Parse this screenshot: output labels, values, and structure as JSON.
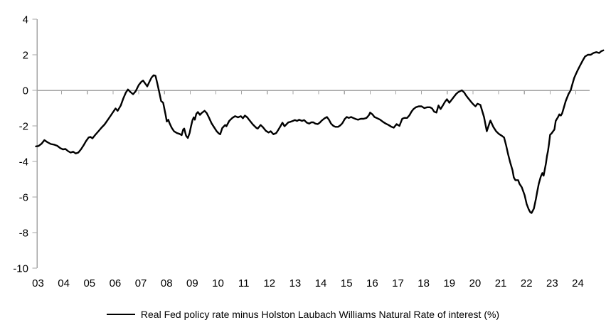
{
  "colors": {
    "series_line": "#000000",
    "axis": "#a6a6a6",
    "text": "#000000",
    "background": "#ffffff"
  },
  "legend": {
    "label": "Real Fed policy rate minus Holston Laubach Williams Natural Rate of interest (%)"
  },
  "chart_data": {
    "type": "line",
    "title": "",
    "xlabel": "",
    "ylabel": "",
    "legend_position": "bottom",
    "grid": "zero-line-only",
    "x_axis": {
      "tick_labels": [
        "03",
        "04",
        "05",
        "06",
        "07",
        "08",
        "09",
        "10",
        "11",
        "12",
        "13",
        "14",
        "15",
        "16",
        "17",
        "18",
        "19",
        "20",
        "21",
        "22",
        "23",
        "24"
      ],
      "tick_years": [
        2003,
        2004,
        2005,
        2006,
        2007,
        2008,
        2009,
        2010,
        2011,
        2012,
        2013,
        2014,
        2015,
        2016,
        2017,
        2018,
        2019,
        2020,
        2021,
        2022,
        2023,
        2024
      ],
      "range": [
        2003.0,
        2025.2
      ]
    },
    "y_axis": {
      "tick_values": [
        4,
        2,
        0,
        -2,
        -4,
        -6,
        -8,
        -10
      ],
      "range": [
        -10,
        4
      ],
      "zero_gridline": true
    },
    "series": [
      {
        "name": "Real Fed policy rate minus Holston Laubach Williams Natural Rate of interest (%)",
        "color": "#000000",
        "x": [
          2003.0,
          2003.1,
          2003.22,
          2003.33,
          2003.45,
          2003.58,
          2003.7,
          2003.83,
          2003.95,
          2004.05,
          2004.15,
          2004.25,
          2004.35,
          2004.45,
          2004.55,
          2004.65,
          2004.75,
          2004.85,
          2004.95,
          2005.05,
          2005.12,
          2005.2,
          2005.3,
          2005.42,
          2005.55,
          2005.67,
          2005.8,
          2005.92,
          2006.02,
          2006.1,
          2006.18,
          2006.3,
          2006.4,
          2006.5,
          2006.58,
          2006.68,
          2006.78,
          2006.88,
          2007.0,
          2007.1,
          2007.17,
          2007.27,
          2007.33,
          2007.42,
          2007.5,
          2007.58,
          2007.65,
          2007.72,
          2007.79,
          2007.87,
          2007.95,
          2008.04,
          2008.09,
          2008.15,
          2008.2,
          2008.28,
          2008.37,
          2008.48,
          2008.59,
          2008.67,
          2008.73,
          2008.77,
          2008.84,
          2008.91,
          2008.98,
          2009.03,
          2009.09,
          2009.14,
          2009.18,
          2009.24,
          2009.3,
          2009.38,
          2009.45,
          2009.56,
          2009.64,
          2009.72,
          2009.83,
          2009.92,
          2010.03,
          2010.11,
          2010.17,
          2010.25,
          2010.36,
          2010.41,
          2010.52,
          2010.64,
          2010.75,
          2010.86,
          2010.97,
          2011.05,
          2011.13,
          2011.22,
          2011.3,
          2011.44,
          2011.58,
          2011.63,
          2011.74,
          2011.83,
          2011.94,
          2012.05,
          2012.13,
          2012.24,
          2012.35,
          2012.43,
          2012.52,
          2012.59,
          2012.67,
          2012.74,
          2012.82,
          2012.9,
          2013.0,
          2013.07,
          2013.16,
          2013.24,
          2013.35,
          2013.43,
          2013.54,
          2013.63,
          2013.71,
          2013.79,
          2013.87,
          2013.96,
          2014.04,
          2014.12,
          2014.23,
          2014.32,
          2014.4,
          2014.48,
          2014.57,
          2014.65,
          2014.76,
          2014.84,
          2014.92,
          2015.01,
          2015.09,
          2015.17,
          2015.26,
          2015.34,
          2015.45,
          2015.53,
          2015.64,
          2015.75,
          2015.86,
          2015.95,
          2016.0,
          2016.09,
          2016.17,
          2016.28,
          2016.39,
          2016.5,
          2016.61,
          2016.72,
          2016.83,
          2016.92,
          2017.03,
          2017.14,
          2017.25,
          2017.33,
          2017.44,
          2017.53,
          2017.61,
          2017.69,
          2017.78,
          2017.89,
          2018.0,
          2018.11,
          2018.22,
          2018.33,
          2018.41,
          2018.49,
          2018.58,
          2018.66,
          2018.74,
          2018.83,
          2018.91,
          2018.99,
          2019.08,
          2019.16,
          2019.24,
          2019.35,
          2019.43,
          2019.52,
          2019.57,
          2019.66,
          2019.74,
          2019.82,
          2019.93,
          2020.02,
          2020.1,
          2020.18,
          2020.29,
          2020.43,
          2020.54,
          2020.63,
          2020.68,
          2020.79,
          2020.9,
          2021.01,
          2021.12,
          2021.21,
          2021.29,
          2021.37,
          2021.45,
          2021.54,
          2021.59,
          2021.65,
          2021.76,
          2021.81,
          2021.9,
          2022.01,
          2022.09,
          2022.17,
          2022.23,
          2022.28,
          2022.37,
          2022.45,
          2022.5,
          2022.56,
          2022.64,
          2022.7,
          2022.75,
          2022.84,
          2022.88,
          2022.92,
          2022.96,
          2023.0,
          2023.06,
          2023.11,
          2023.17,
          2023.22,
          2023.31,
          2023.36,
          2023.42,
          2023.47,
          2023.53,
          2023.61,
          2023.72,
          2023.8,
          2023.86,
          2023.94,
          2024.0,
          2024.08,
          2024.17,
          2024.28,
          2024.36,
          2024.47,
          2024.58,
          2024.69,
          2024.8,
          2024.91,
          2024.99,
          2025.07
        ],
        "y": [
          -3.15,
          -3.13,
          -3.0,
          -2.8,
          -2.92,
          -3.02,
          -3.05,
          -3.12,
          -3.25,
          -3.32,
          -3.3,
          -3.42,
          -3.5,
          -3.45,
          -3.55,
          -3.5,
          -3.32,
          -3.1,
          -2.85,
          -2.65,
          -2.62,
          -2.7,
          -2.52,
          -2.32,
          -2.1,
          -1.92,
          -1.65,
          -1.4,
          -1.18,
          -1.02,
          -1.15,
          -0.85,
          -0.45,
          -0.12,
          0.05,
          -0.1,
          -0.22,
          -0.05,
          0.3,
          0.48,
          0.55,
          0.35,
          0.22,
          0.5,
          0.72,
          0.85,
          0.82,
          0.4,
          -0.05,
          -0.6,
          -0.7,
          -1.35,
          -1.75,
          -1.65,
          -1.85,
          -2.1,
          -2.3,
          -2.4,
          -2.45,
          -2.52,
          -2.2,
          -2.15,
          -2.55,
          -2.68,
          -2.4,
          -2.05,
          -1.68,
          -1.52,
          -1.65,
          -1.32,
          -1.22,
          -1.38,
          -1.27,
          -1.15,
          -1.27,
          -1.5,
          -1.85,
          -2.05,
          -2.3,
          -2.42,
          -2.47,
          -2.12,
          -1.95,
          -2.02,
          -1.72,
          -1.55,
          -1.45,
          -1.52,
          -1.45,
          -1.57,
          -1.42,
          -1.52,
          -1.67,
          -1.92,
          -2.12,
          -2.15,
          -1.95,
          -2.07,
          -2.27,
          -2.37,
          -2.3,
          -2.47,
          -2.4,
          -2.22,
          -2.0,
          -1.82,
          -2.02,
          -1.92,
          -1.8,
          -1.77,
          -1.72,
          -1.67,
          -1.72,
          -1.65,
          -1.72,
          -1.67,
          -1.82,
          -1.87,
          -1.8,
          -1.8,
          -1.87,
          -1.9,
          -1.82,
          -1.7,
          -1.57,
          -1.5,
          -1.65,
          -1.87,
          -2.0,
          -2.05,
          -2.05,
          -1.97,
          -1.85,
          -1.62,
          -1.5,
          -1.55,
          -1.5,
          -1.55,
          -1.62,
          -1.65,
          -1.6,
          -1.6,
          -1.55,
          -1.4,
          -1.25,
          -1.35,
          -1.5,
          -1.57,
          -1.65,
          -1.77,
          -1.87,
          -1.95,
          -2.05,
          -2.1,
          -1.9,
          -2.0,
          -1.6,
          -1.55,
          -1.55,
          -1.4,
          -1.2,
          -1.05,
          -0.95,
          -0.9,
          -0.9,
          -1.0,
          -0.95,
          -0.95,
          -1.02,
          -1.2,
          -1.25,
          -0.85,
          -1.05,
          -0.85,
          -0.65,
          -0.5,
          -0.7,
          -0.55,
          -0.4,
          -0.2,
          -0.1,
          -0.03,
          0.0,
          -0.12,
          -0.3,
          -0.45,
          -0.65,
          -0.8,
          -0.9,
          -0.75,
          -0.82,
          -1.5,
          -2.3,
          -1.9,
          -1.7,
          -2.05,
          -2.3,
          -2.45,
          -2.55,
          -2.65,
          -3.1,
          -3.6,
          -4.05,
          -4.5,
          -4.9,
          -5.05,
          -5.05,
          -5.25,
          -5.45,
          -5.9,
          -6.4,
          -6.7,
          -6.85,
          -6.9,
          -6.65,
          -6.1,
          -5.7,
          -5.25,
          -4.85,
          -4.65,
          -4.8,
          -4.1,
          -3.7,
          -3.4,
          -3.0,
          -2.5,
          -2.42,
          -2.32,
          -2.2,
          -1.72,
          -1.5,
          -1.35,
          -1.42,
          -1.3,
          -1.0,
          -0.6,
          -0.2,
          0.0,
          0.3,
          0.7,
          0.9,
          1.15,
          1.4,
          1.7,
          1.9,
          2.0,
          2.0,
          2.1,
          2.15,
          2.1,
          2.2,
          2.25
        ]
      }
    ]
  }
}
